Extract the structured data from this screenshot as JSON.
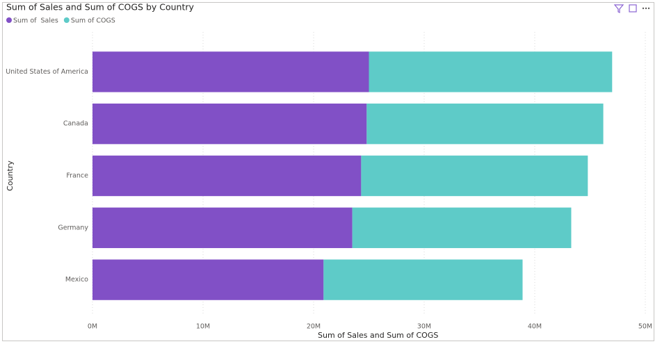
{
  "chart_data": {
    "type": "stacked_bar_horizontal",
    "title": "Sum of Sales and Sum of COGS by Country",
    "x_label": "Sum of Sales and Sum of COGS",
    "y_label": "Country",
    "categories": [
      "United States of America",
      "Canada",
      "France",
      "Germany",
      "Mexico"
    ],
    "series": [
      {
        "name": "Sum of  Sales",
        "color": "#8150c6",
        "values": [
          25.0,
          24.8,
          24.3,
          23.5,
          20.9
        ]
      },
      {
        "name": "Sum of COGS",
        "color": "#5ecbc8",
        "values": [
          22.0,
          21.4,
          20.5,
          19.8,
          18.0
        ]
      }
    ],
    "xlim": [
      0,
      50
    ],
    "xticks": [
      {
        "value": 0,
        "label": "0M"
      },
      {
        "value": 10,
        "label": "10M"
      },
      {
        "value": 20,
        "label": "20M"
      },
      {
        "value": 30,
        "label": "30M"
      },
      {
        "value": 40,
        "label": "40M"
      },
      {
        "value": 50,
        "label": "50M"
      }
    ],
    "grid": true
  }
}
